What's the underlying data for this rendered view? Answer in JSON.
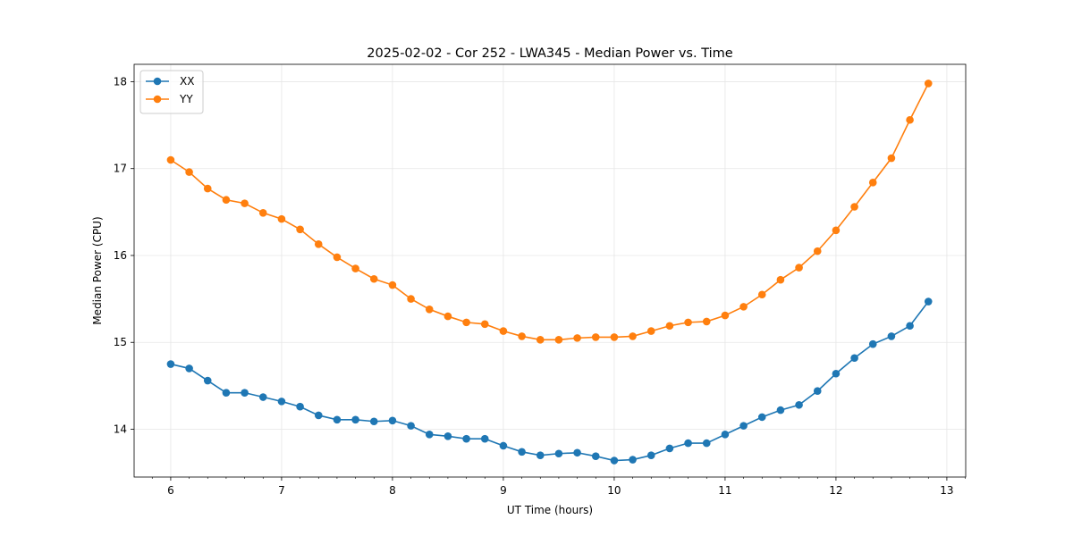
{
  "chart_data": {
    "type": "line",
    "title": "2025-02-02 - Cor 252 - LWA345 - Median Power vs. Time",
    "xlabel": "UT Time (hours)",
    "ylabel": "Median Power (CPU)",
    "xlim": [
      5.67,
      13.17
    ],
    "ylim": [
      13.45,
      18.2
    ],
    "xticks": [
      6,
      7,
      8,
      9,
      10,
      11,
      12,
      13
    ],
    "yticks": [
      14,
      15,
      16,
      17,
      18
    ],
    "grid": true,
    "legend_position": "top-left",
    "x": [
      6.0,
      6.1667,
      6.3333,
      6.5,
      6.6667,
      6.8333,
      7.0,
      7.1667,
      7.3333,
      7.5,
      7.6667,
      7.8333,
      8.0,
      8.1667,
      8.3333,
      8.5,
      8.6667,
      8.8333,
      9.0,
      9.1667,
      9.3333,
      9.5,
      9.6667,
      9.8333,
      10.0,
      10.1667,
      10.3333,
      10.5,
      10.6667,
      10.8333,
      11.0,
      11.1667,
      11.3333,
      11.5,
      11.6667,
      11.8333,
      12.0,
      12.1667,
      12.3333,
      12.5,
      12.6667,
      12.8333
    ],
    "series": [
      {
        "name": "XX",
        "color": "#1f77b4",
        "values": [
          14.75,
          14.7,
          14.56,
          14.42,
          14.42,
          14.37,
          14.32,
          14.26,
          14.16,
          14.11,
          14.11,
          14.09,
          14.1,
          14.04,
          13.94,
          13.92,
          13.89,
          13.89,
          13.81,
          13.74,
          13.7,
          13.72,
          13.73,
          13.69,
          13.64,
          13.65,
          13.7,
          13.78,
          13.84,
          13.84,
          13.94,
          14.04,
          14.14,
          14.22,
          14.28,
          14.44,
          14.64,
          14.82,
          14.98,
          15.07,
          15.19,
          15.47
        ]
      },
      {
        "name": "YY",
        "color": "#ff7f0e",
        "values": [
          17.1,
          16.96,
          16.77,
          16.64,
          16.6,
          16.49,
          16.42,
          16.3,
          16.13,
          15.98,
          15.85,
          15.73,
          15.66,
          15.5,
          15.38,
          15.3,
          15.23,
          15.21,
          15.13,
          15.07,
          15.03,
          15.03,
          15.05,
          15.06,
          15.06,
          15.07,
          15.13,
          15.19,
          15.23,
          15.24,
          15.31,
          15.41,
          15.55,
          15.72,
          15.86,
          16.05,
          16.29,
          16.56,
          16.84,
          17.12,
          17.56,
          17.98
        ]
      }
    ]
  }
}
